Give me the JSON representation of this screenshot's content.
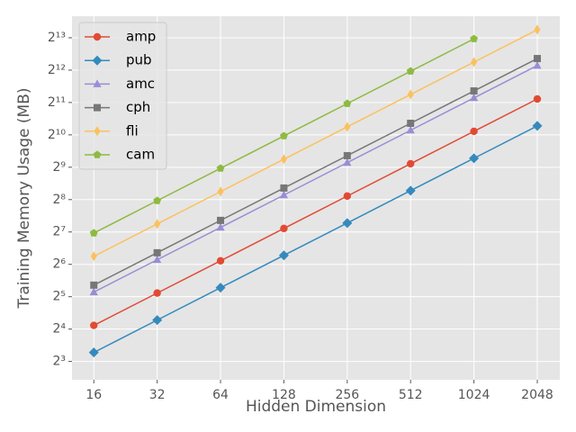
{
  "chart_data": {
    "type": "line",
    "xlabel": "Hidden Dimension",
    "ylabel": "Training Memory Usage (MB)",
    "x": [
      16,
      32,
      64,
      128,
      256,
      512,
      1024,
      2048
    ],
    "xscale": "log2",
    "yscale": "log2",
    "xlim": [
      12.6,
      2620
    ],
    "ylim": [
      5.4,
      13000
    ],
    "xticks": [
      16,
      32,
      64,
      128,
      256,
      512,
      1024,
      2048
    ],
    "yticks": [
      {
        "value": 8,
        "label": "2³"
      },
      {
        "value": 16,
        "label": "2⁴"
      },
      {
        "value": 32,
        "label": "2⁵"
      },
      {
        "value": 64,
        "label": "2⁶"
      },
      {
        "value": 128,
        "label": "2⁷"
      },
      {
        "value": 256,
        "label": "2⁸"
      },
      {
        "value": 512,
        "label": "2⁹"
      },
      {
        "value": 1024,
        "label": "2¹⁰"
      },
      {
        "value": 2048,
        "label": "2¹¹"
      },
      {
        "value": 4096,
        "label": "2¹²"
      },
      {
        "value": 8192,
        "label": "2¹³"
      }
    ],
    "grid": true,
    "legend": "upper left",
    "series": [
      {
        "name": "amp",
        "color": "#E24A33",
        "marker": "circle",
        "values": [
          17.3,
          34.6,
          69,
          138,
          276,
          552,
          1104,
          2208
        ]
      },
      {
        "name": "pub",
        "color": "#348ABD",
        "marker": "diamond",
        "values": [
          9.7,
          19.4,
          38.8,
          77.6,
          155,
          310,
          620,
          1240
        ]
      },
      {
        "name": "amc",
        "color": "#988ED5",
        "marker": "triangle",
        "values": [
          35.3,
          70.6,
          141,
          282,
          565,
          1130,
          2260,
          4520
        ]
      },
      {
        "name": "cph",
        "color": "#777777",
        "marker": "square",
        "values": [
          41,
          82,
          164,
          328,
          656,
          1312,
          2624,
          5248
        ]
      },
      {
        "name": "fli",
        "color": "#FBC15E",
        "marker": "thin-diamond",
        "values": [
          76,
          152,
          304,
          608,
          1216,
          2432,
          4864,
          9728
        ]
      },
      {
        "name": "cam",
        "color": "#8EBA42",
        "marker": "pentagon",
        "values": [
          125,
          250,
          500,
          1000,
          2000,
          4000,
          8000,
          null
        ]
      }
    ]
  }
}
